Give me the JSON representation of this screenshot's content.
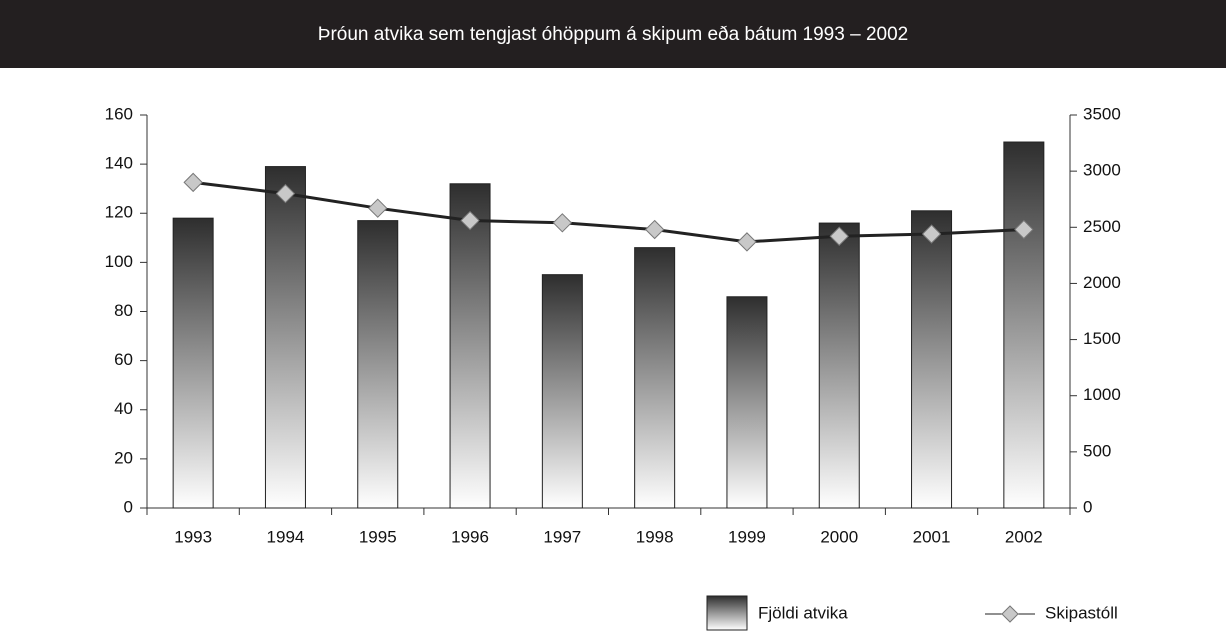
{
  "chart_data": {
    "type": "bar",
    "title": "Þróun atvika sem tengjast óhöppum á skipum eða bátum 1993 – 2002",
    "categories": [
      "1993",
      "1994",
      "1995",
      "1996",
      "1997",
      "1998",
      "1999",
      "2000",
      "2001",
      "2002"
    ],
    "series": [
      {
        "name": "Fjöldi atvika",
        "type": "bar",
        "color": "#2e2e2e",
        "values": [
          118,
          139,
          117,
          132,
          95,
          106,
          86,
          116,
          121,
          149
        ]
      },
      {
        "name": "Skipastóll",
        "type": "line",
        "axis": "y2",
        "color": "#222222",
        "marker_color": "#c8c8c8",
        "values": [
          2900,
          2800,
          2670,
          2560,
          2540,
          2480,
          2370,
          2420,
          2440,
          2480
        ]
      }
    ],
    "ylim": [
      0,
      160
    ],
    "yticks": [
      0,
      20,
      40,
      60,
      80,
      100,
      120,
      140,
      160
    ],
    "y2lim": [
      0,
      3500
    ],
    "y2ticks": [
      0,
      500,
      1000,
      1500,
      2000,
      2500,
      3000,
      3500
    ],
    "grid": false,
    "legend": "bottom-right"
  }
}
